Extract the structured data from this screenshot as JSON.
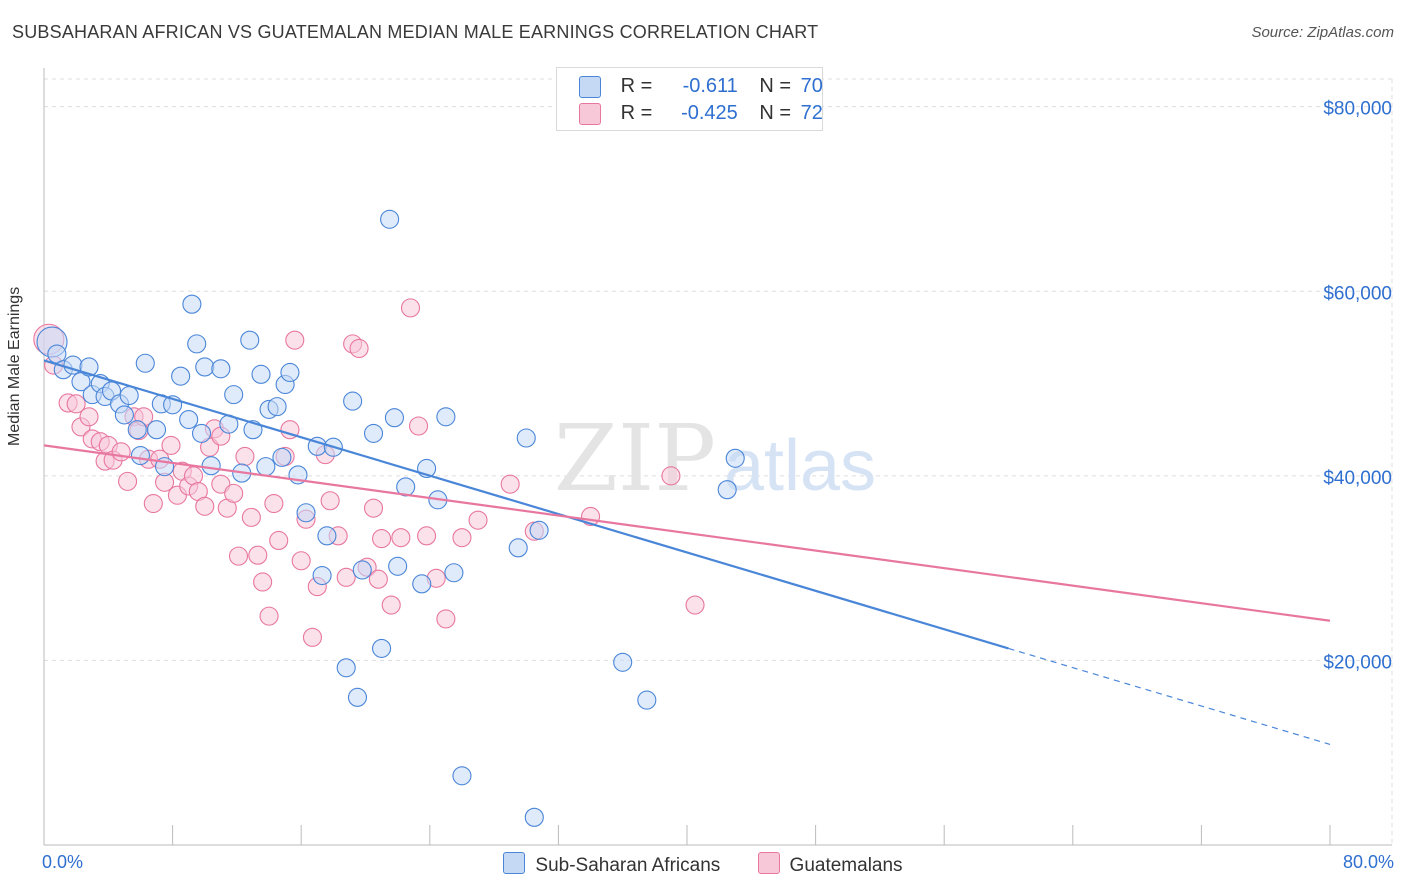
{
  "title": "SUBSAHARAN AFRICAN VS GUATEMALAN MEDIAN MALE EARNINGS CORRELATION CHART",
  "source": "Source: ZipAtlas.com",
  "watermark": {
    "zip": "ZIP",
    "atlas": "atlas"
  },
  "legend": {
    "r_label": "R =",
    "n_label": "N =",
    "rows": [
      {
        "r": "-0.611",
        "n": "70",
        "color": "#aac8f2"
      },
      {
        "r": "-0.425",
        "n": "72",
        "color": "#f5b8cc"
      }
    ]
  },
  "bottom_legend": [
    {
      "label": "Sub-Saharan Africans",
      "color": "#aac8f2"
    },
    {
      "label": "Guatemalans",
      "color": "#f5b8cc"
    }
  ],
  "colors": {
    "blue": "#4a86d8",
    "blue_fill": "#c5d9f5",
    "pink": "#e8779f",
    "pink_fill": "#f7c9d8",
    "axis_text": "#2f6fd0",
    "grid": "#dddddd"
  },
  "chart_data": {
    "type": "scatter",
    "title": "SUBSAHARAN AFRICAN VS GUATEMALAN MEDIAN MALE EARNINGS CORRELATION CHART",
    "xlabel": "",
    "ylabel": "Median Male Earnings",
    "xlim": [
      0,
      80
    ],
    "ylim": [
      0,
      83000
    ],
    "x_tick_labels": [
      "0.0%",
      "80.0%"
    ],
    "y_ticks": [
      20000,
      40000,
      60000,
      80000
    ],
    "y_tick_labels": [
      "$20,000",
      "$40,000",
      "$60,000",
      "$80,000"
    ],
    "grid": true,
    "legend_position": "top-center",
    "series": [
      {
        "name": "Sub-Saharan Africans",
        "color": "#4a86d8",
        "points": [
          [
            0.5,
            54500
          ],
          [
            0.8,
            53200
          ],
          [
            1.2,
            51500
          ],
          [
            1.8,
            52000
          ],
          [
            2.3,
            50200
          ],
          [
            2.8,
            51800
          ],
          [
            3.0,
            48800
          ],
          [
            3.5,
            50000
          ],
          [
            3.8,
            48600
          ],
          [
            4.2,
            49200
          ],
          [
            4.7,
            47800
          ],
          [
            5.0,
            46600
          ],
          [
            5.3,
            48700
          ],
          [
            5.8,
            45000
          ],
          [
            6.0,
            42200
          ],
          [
            6.3,
            52200
          ],
          [
            7.0,
            45000
          ],
          [
            7.3,
            47800
          ],
          [
            7.5,
            41000
          ],
          [
            8.0,
            47700
          ],
          [
            8.5,
            50800
          ],
          [
            9.0,
            46100
          ],
          [
            9.2,
            58600
          ],
          [
            9.5,
            54300
          ],
          [
            9.8,
            44600
          ],
          [
            10.0,
            51800
          ],
          [
            10.4,
            41100
          ],
          [
            11.0,
            51600
          ],
          [
            11.5,
            45600
          ],
          [
            11.8,
            48800
          ],
          [
            12.3,
            40300
          ],
          [
            12.8,
            54700
          ],
          [
            13.0,
            45000
          ],
          [
            13.5,
            51000
          ],
          [
            13.8,
            41000
          ],
          [
            14.0,
            47200
          ],
          [
            14.5,
            47500
          ],
          [
            14.8,
            42000
          ],
          [
            15.0,
            49900
          ],
          [
            15.3,
            51200
          ],
          [
            15.8,
            40100
          ],
          [
            16.3,
            36000
          ],
          [
            17.0,
            43200
          ],
          [
            17.3,
            29200
          ],
          [
            17.6,
            33500
          ],
          [
            18.0,
            43100
          ],
          [
            18.8,
            19200
          ],
          [
            19.2,
            48100
          ],
          [
            19.5,
            16000
          ],
          [
            19.8,
            29800
          ],
          [
            21.0,
            21300
          ],
          [
            21.5,
            67800
          ],
          [
            21.8,
            46300
          ],
          [
            22.0,
            30200
          ],
          [
            23.5,
            28300
          ],
          [
            23.8,
            40800
          ],
          [
            24.5,
            37400
          ],
          [
            25.0,
            46400
          ],
          [
            25.5,
            29500
          ],
          [
            26.0,
            7500
          ],
          [
            29.5,
            32200
          ],
          [
            30.0,
            44100
          ],
          [
            30.8,
            34100
          ],
          [
            36.0,
            19800
          ],
          [
            37.5,
            15700
          ],
          [
            42.5,
            38500
          ],
          [
            43.0,
            41900
          ],
          [
            30.5,
            3000
          ],
          [
            22.5,
            38800
          ],
          [
            20.5,
            44600
          ]
        ]
      },
      {
        "name": "Guatemalans",
        "color": "#e8779f",
        "points": [
          [
            0.3,
            54800
          ],
          [
            0.6,
            52000
          ],
          [
            1.5,
            47900
          ],
          [
            2.0,
            47800
          ],
          [
            2.3,
            45300
          ],
          [
            2.8,
            46400
          ],
          [
            3.0,
            44000
          ],
          [
            3.5,
            43700
          ],
          [
            3.8,
            41600
          ],
          [
            4.0,
            43300
          ],
          [
            4.3,
            41700
          ],
          [
            4.8,
            42600
          ],
          [
            5.2,
            39400
          ],
          [
            5.6,
            46400
          ],
          [
            5.9,
            44900
          ],
          [
            6.2,
            46400
          ],
          [
            6.5,
            41800
          ],
          [
            6.8,
            37000
          ],
          [
            7.2,
            41800
          ],
          [
            7.5,
            39300
          ],
          [
            7.9,
            43300
          ],
          [
            8.3,
            37900
          ],
          [
            8.6,
            40500
          ],
          [
            9.0,
            38900
          ],
          [
            9.3,
            40000
          ],
          [
            9.6,
            38300
          ],
          [
            10.0,
            36700
          ],
          [
            10.3,
            43100
          ],
          [
            10.6,
            45100
          ],
          [
            11.0,
            39100
          ],
          [
            11.4,
            36500
          ],
          [
            11.8,
            38100
          ],
          [
            12.1,
            31300
          ],
          [
            12.5,
            42100
          ],
          [
            12.9,
            35500
          ],
          [
            13.3,
            31400
          ],
          [
            13.6,
            28500
          ],
          [
            14.0,
            24800
          ],
          [
            14.3,
            37000
          ],
          [
            14.6,
            33000
          ],
          [
            15.0,
            42100
          ],
          [
            15.3,
            45000
          ],
          [
            15.6,
            54700
          ],
          [
            16.0,
            30800
          ],
          [
            16.3,
            35300
          ],
          [
            16.7,
            22500
          ],
          [
            17.0,
            28000
          ],
          [
            17.5,
            42300
          ],
          [
            17.8,
            37300
          ],
          [
            18.3,
            33500
          ],
          [
            18.8,
            29000
          ],
          [
            19.2,
            54300
          ],
          [
            19.6,
            53800
          ],
          [
            20.1,
            30100
          ],
          [
            20.5,
            36500
          ],
          [
            21.0,
            33200
          ],
          [
            21.6,
            26000
          ],
          [
            22.2,
            33300
          ],
          [
            22.8,
            58200
          ],
          [
            23.3,
            45400
          ],
          [
            23.8,
            33500
          ],
          [
            24.4,
            28900
          ],
          [
            25.0,
            24500
          ],
          [
            26.0,
            33300
          ],
          [
            27.0,
            35200
          ],
          [
            29.0,
            39100
          ],
          [
            30.5,
            34000
          ],
          [
            34.0,
            35600
          ],
          [
            39.0,
            40000
          ],
          [
            40.5,
            26000
          ],
          [
            20.8,
            28800
          ],
          [
            11.0,
            44300
          ]
        ]
      }
    ],
    "trend_lines": [
      {
        "series": "Sub-Saharan Africans",
        "x": [
          0,
          60
        ],
        "y": [
          52500,
          21300
        ],
        "dashed_to": [
          80,
          10900
        ]
      },
      {
        "series": "Guatemalans",
        "x": [
          0,
          80
        ],
        "y": [
          43300,
          24300
        ]
      }
    ]
  }
}
